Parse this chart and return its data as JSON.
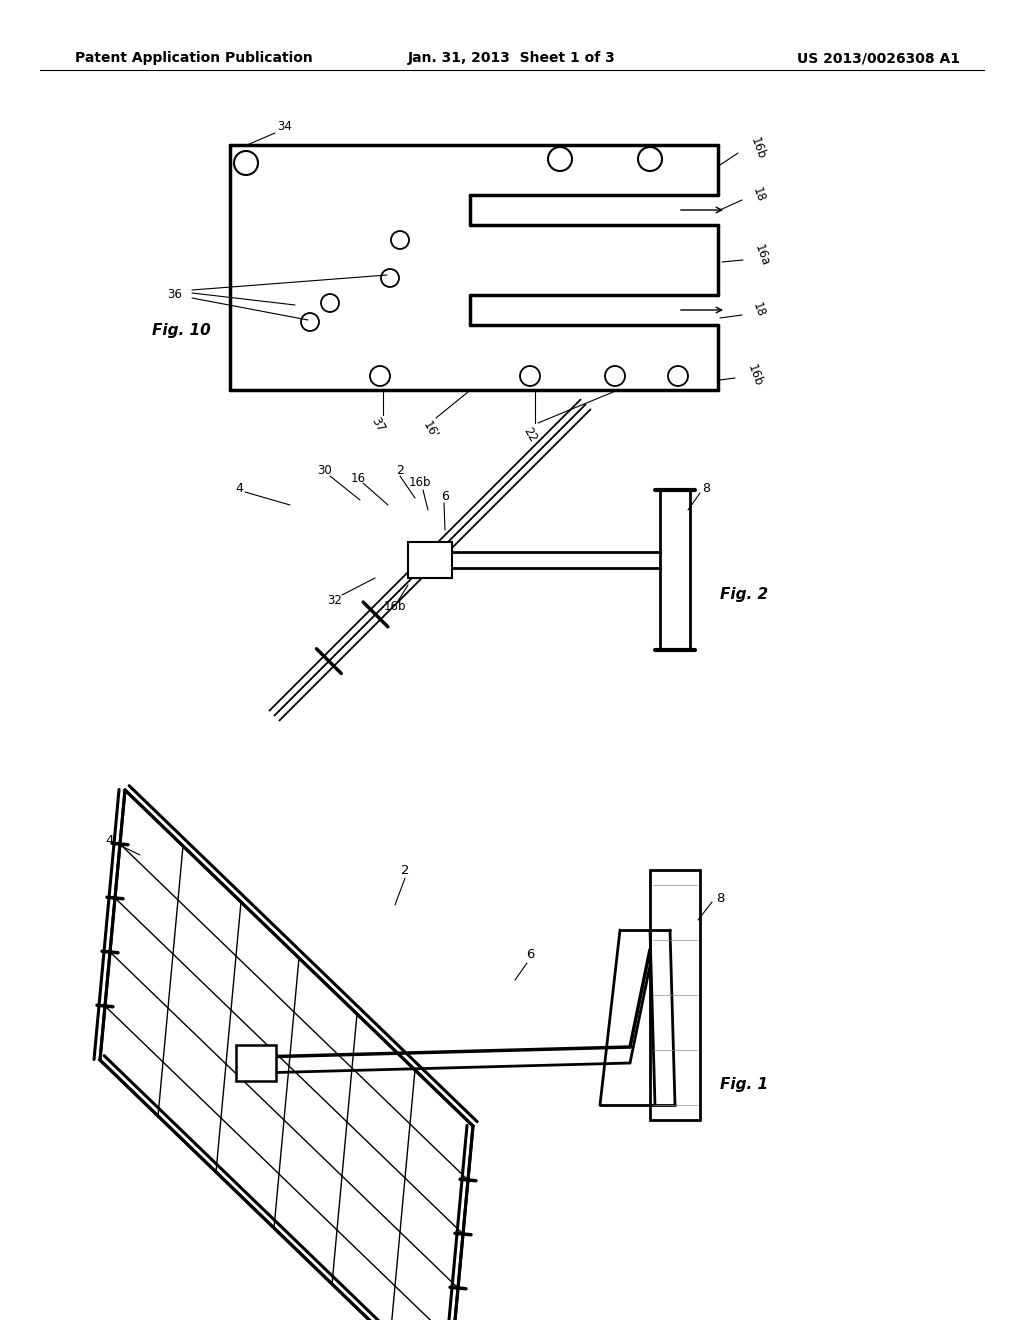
{
  "bg": "#ffffff",
  "header_left": "Patent Application Publication",
  "header_center": "Jan. 31, 2013  Sheet 1 of 3",
  "header_right": "US 2013/0026308 A1",
  "fig10_label": "Fig. 10",
  "fig2_label": "Fig. 2",
  "fig1_label": "Fig. 1",
  "lfs": 8.5,
  "ffs": 11
}
